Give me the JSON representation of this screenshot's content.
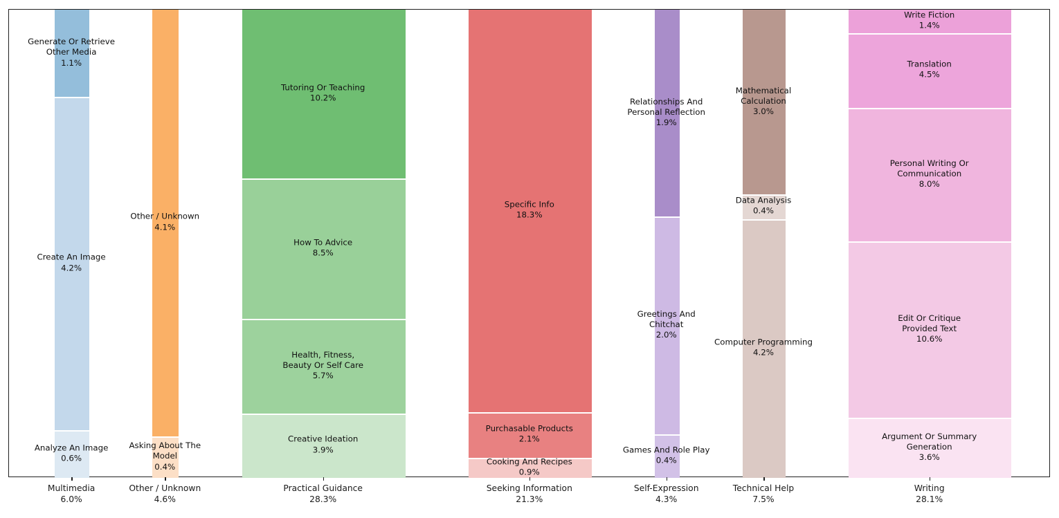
{
  "chart_data": {
    "type": "bar",
    "variant": "mosaic / marimekko (variable-width 100%-stacked columns)",
    "unit": "%",
    "title": "",
    "xlabel": "",
    "ylabel": "",
    "grid": false,
    "legend": false,
    "background_color": "#ffffff",
    "frame_color": "#1f1f1f",
    "columns": [
      {
        "label": "Multimedia",
        "total": 6.0,
        "tick_label_lines": [
          "Multimedia",
          "6.0%"
        ],
        "segments": [
          {
            "name": "Generate Or Retrieve Other Media",
            "value": 1.1,
            "label_lines": [
              "Generate Or Retrieve",
              "Other Media",
              "1.1%"
            ],
            "color": "#94bedb"
          },
          {
            "name": "Create An Image",
            "value": 4.2,
            "label_lines": [
              "Create An Image",
              "4.2%"
            ],
            "color": "#c3d8eb"
          },
          {
            "name": "Analyze An Image",
            "value": 0.6,
            "label_lines": [
              "Analyze An Image",
              "0.6%"
            ],
            "color": "#dde9f3"
          }
        ]
      },
      {
        "label": "Other / Unknown",
        "total": 4.6,
        "tick_label_lines": [
          "Other / Unknown",
          "4.6%"
        ],
        "segments": [
          {
            "name": "Other / Unknown",
            "value": 4.1,
            "label_lines": [
              "Other / Unknown",
              "4.1%"
            ],
            "color": "#fab066"
          },
          {
            "name": "Asking About The Model",
            "value": 0.4,
            "label_lines": [
              "Asking About The",
              "Model",
              "0.4%"
            ],
            "color": "#fcdfc6"
          }
        ]
      },
      {
        "label": "Practical Guidance",
        "total": 28.3,
        "tick_label_lines": [
          "Practical Guidance",
          "28.3%"
        ],
        "segments": [
          {
            "name": "Tutoring Or Teaching",
            "value": 10.2,
            "label_lines": [
              "Tutoring Or Teaching",
              "10.2%"
            ],
            "color": "#6fbe72"
          },
          {
            "name": "How To Advice",
            "value": 8.5,
            "label_lines": [
              "How To Advice",
              "8.5%"
            ],
            "color": "#99d099"
          },
          {
            "name": "Health, Fitness, Beauty Or Self Care",
            "value": 5.7,
            "label_lines": [
              "Health, Fitness,",
              "Beauty Or Self Care",
              "5.7%"
            ],
            "color": "#9dd29d"
          },
          {
            "name": "Creative Ideation",
            "value": 3.9,
            "label_lines": [
              "Creative Ideation",
              "3.9%"
            ],
            "color": "#cbe6cb"
          }
        ]
      },
      {
        "label": "Seeking Information",
        "total": 21.3,
        "tick_label_lines": [
          "Seeking Information",
          "21.3%"
        ],
        "segments": [
          {
            "name": "Specific Info",
            "value": 18.3,
            "label_lines": [
              "Specific Info",
              "18.3%"
            ],
            "color": "#e57373"
          },
          {
            "name": "Purchasable Products",
            "value": 2.1,
            "label_lines": [
              "Purchasable Products",
              "2.1%"
            ],
            "color": "#e88181"
          },
          {
            "name": "Cooking And Recipes",
            "value": 0.9,
            "label_lines": [
              "Cooking And Recipes",
              "0.9%"
            ],
            "color": "#f5c9c7"
          }
        ]
      },
      {
        "label": "Self-Expression",
        "total": 4.3,
        "tick_label_lines": [
          "Self-Expression",
          "4.3%"
        ],
        "segments": [
          {
            "name": "Relationships And Personal Reflection",
            "value": 1.9,
            "label_lines": [
              "Relationships And",
              "Personal Reflection",
              "1.9%"
            ],
            "color": "#a98dc9"
          },
          {
            "name": "Greetings And Chitchat",
            "value": 2.0,
            "label_lines": [
              "Greetings And",
              "Chitchat",
              "2.0%"
            ],
            "color": "#cebae4"
          },
          {
            "name": "Games And Role Play",
            "value": 0.4,
            "label_lines": [
              "Games And Role Play",
              "0.4%"
            ],
            "color": "#d2c1e7"
          }
        ]
      },
      {
        "label": "Technical Help",
        "total": 7.5,
        "tick_label_lines": [
          "Technical Help",
          "7.5%"
        ],
        "segments": [
          {
            "name": "Mathematical Calculation",
            "value": 3.0,
            "label_lines": [
              "Mathematical",
              "Calculation",
              "3.0%"
            ],
            "color": "#b8988f"
          },
          {
            "name": "Data Analysis",
            "value": 0.4,
            "label_lines": [
              "Data Analysis",
              "0.4%"
            ],
            "color": "#e4d7d3"
          },
          {
            "name": "Computer Programming",
            "value": 4.2,
            "label_lines": [
              "Computer Programming",
              "4.2%"
            ],
            "color": "#dbc9c4"
          }
        ]
      },
      {
        "label": "Writing",
        "total": 28.1,
        "tick_label_lines": [
          "Writing",
          "28.1%"
        ],
        "segments": [
          {
            "name": "Write Fiction",
            "value": 1.4,
            "label_lines": [
              "Write Fiction",
              "1.4%"
            ],
            "color": "#eca1d9"
          },
          {
            "name": "Translation",
            "value": 4.5,
            "label_lines": [
              "Translation",
              "4.5%"
            ],
            "color": "#eda5db"
          },
          {
            "name": "Personal Writing Or Communication",
            "value": 8.0,
            "label_lines": [
              "Personal Writing Or",
              "Communication",
              "8.0%"
            ],
            "color": "#f0b5de"
          },
          {
            "name": "Edit Or Critique Provided Text",
            "value": 10.6,
            "label_lines": [
              "Edit Or Critique",
              "Provided Text",
              "10.6%"
            ],
            "color": "#f3c9e5"
          },
          {
            "name": "Argument Or Summary Generation",
            "value": 3.6,
            "label_lines": [
              "Argument Or Summary",
              "Generation",
              "3.6%"
            ],
            "color": "#fae3f2"
          }
        ]
      }
    ]
  }
}
